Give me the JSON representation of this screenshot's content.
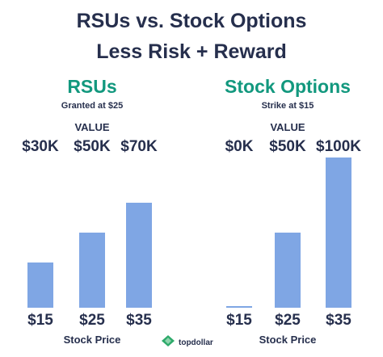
{
  "title": "RSUs vs. Stock Options",
  "subtitle": "Less Risk + Reward",
  "brand": {
    "name": "topdollar",
    "icon": "leaf-icon",
    "color": "#2eaa6b"
  },
  "bar_color": "#7fa6e4",
  "title_color": "#12987e",
  "chart_data": [
    {
      "type": "bar",
      "title": "RSUs",
      "subtitle": "Granted at $25",
      "value_header": "VALUE",
      "xlabel": "Stock Price",
      "categories": [
        "$15",
        "$25",
        "$35"
      ],
      "values": [
        30000,
        50000,
        70000
      ],
      "value_labels": [
        "$30K",
        "$50K",
        "$70K"
      ],
      "ylim": [
        0,
        100000
      ],
      "grid": false
    },
    {
      "type": "bar",
      "title": "Stock Options",
      "subtitle": "Strike at $15",
      "value_header": "VALUE",
      "xlabel": "Stock Price",
      "categories": [
        "$15",
        "$25",
        "$35"
      ],
      "values": [
        0,
        50000,
        100000
      ],
      "value_labels": [
        "$0K",
        "$50K",
        "$100K"
      ],
      "ylim": [
        0,
        100000
      ],
      "grid": false
    }
  ]
}
